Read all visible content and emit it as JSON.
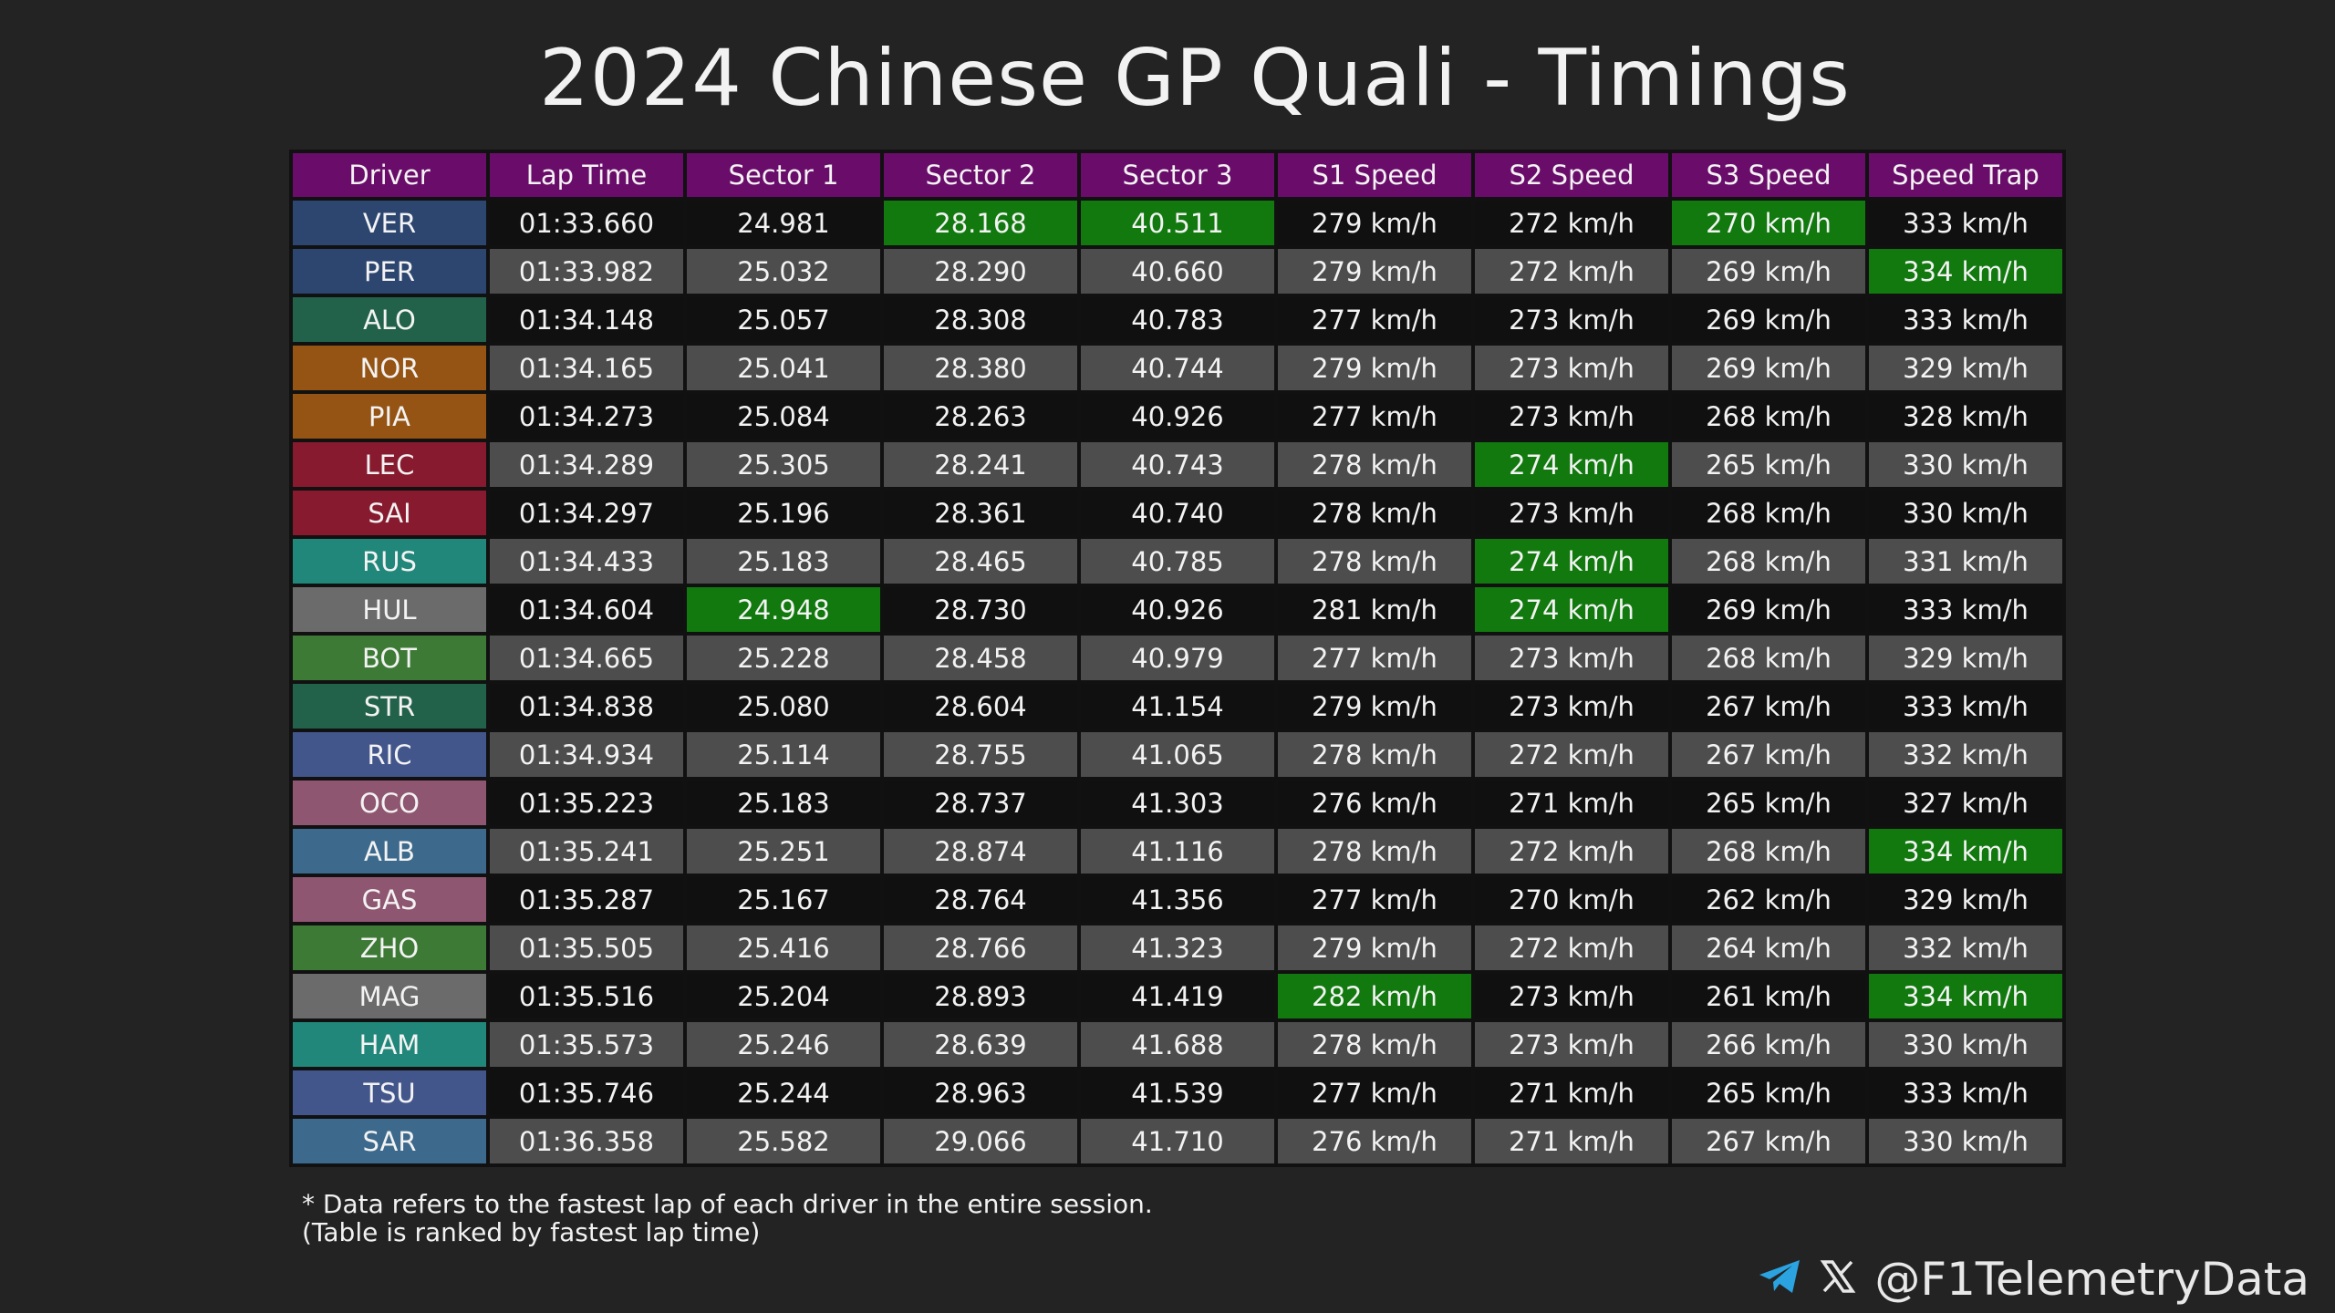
{
  "title": "2024 Chinese GP Quali - Timings",
  "watermark": "@F1TelemetryData",
  "colors": {
    "header": "#6a0c6a",
    "best": "#11790e",
    "row_dark": "#101010",
    "row_light": "#4d4d4d",
    "teams": {
      "VER": "#2c4670",
      "PER": "#2c4670",
      "ALO": "#22624a",
      "STR": "#22624a",
      "NOR": "#955414",
      "PIA": "#955414",
      "LEC": "#871a2e",
      "SAI": "#871a2e",
      "RUS": "#21877a",
      "HAM": "#21877a",
      "HUL": "#6b6b6b",
      "MAG": "#6b6b6b",
      "BOT": "#3d7a36",
      "ZHO": "#3d7a36",
      "RIC": "#43568c",
      "TSU": "#43568c",
      "OCO": "#8e5670",
      "GAS": "#8e5670",
      "ALB": "#3d6a8c",
      "SAR": "#3d6a8c"
    }
  },
  "chart_data": {
    "type": "table",
    "title": "2024 Chinese GP Quali - Timings",
    "columns": [
      "Driver",
      "Lap Time",
      "Sector 1",
      "Sector 2",
      "Sector 3",
      "S1 Speed",
      "S2 Speed",
      "S3 Speed",
      "Speed Trap"
    ],
    "rows": [
      [
        "VER",
        "01:33.660",
        "24.981",
        "28.168",
        "40.511",
        "279 km/h",
        "272 km/h",
        "270 km/h",
        "333 km/h"
      ],
      [
        "PER",
        "01:33.982",
        "25.032",
        "28.290",
        "40.660",
        "279 km/h",
        "272 km/h",
        "269 km/h",
        "334 km/h"
      ],
      [
        "ALO",
        "01:34.148",
        "25.057",
        "28.308",
        "40.783",
        "277 km/h",
        "273 km/h",
        "269 km/h",
        "333 km/h"
      ],
      [
        "NOR",
        "01:34.165",
        "25.041",
        "28.380",
        "40.744",
        "279 km/h",
        "273 km/h",
        "269 km/h",
        "329 km/h"
      ],
      [
        "PIA",
        "01:34.273",
        "25.084",
        "28.263",
        "40.926",
        "277 km/h",
        "273 km/h",
        "268 km/h",
        "328 km/h"
      ],
      [
        "LEC",
        "01:34.289",
        "25.305",
        "28.241",
        "40.743",
        "278 km/h",
        "274 km/h",
        "265 km/h",
        "330 km/h"
      ],
      [
        "SAI",
        "01:34.297",
        "25.196",
        "28.361",
        "40.740",
        "278 km/h",
        "273 km/h",
        "268 km/h",
        "330 km/h"
      ],
      [
        "RUS",
        "01:34.433",
        "25.183",
        "28.465",
        "40.785",
        "278 km/h",
        "274 km/h",
        "268 km/h",
        "331 km/h"
      ],
      [
        "HUL",
        "01:34.604",
        "24.948",
        "28.730",
        "40.926",
        "281 km/h",
        "274 km/h",
        "269 km/h",
        "333 km/h"
      ],
      [
        "BOT",
        "01:34.665",
        "25.228",
        "28.458",
        "40.979",
        "277 km/h",
        "273 km/h",
        "268 km/h",
        "329 km/h"
      ],
      [
        "STR",
        "01:34.838",
        "25.080",
        "28.604",
        "41.154",
        "279 km/h",
        "273 km/h",
        "267 km/h",
        "333 km/h"
      ],
      [
        "RIC",
        "01:34.934",
        "25.114",
        "28.755",
        "41.065",
        "278 km/h",
        "272 km/h",
        "267 km/h",
        "332 km/h"
      ],
      [
        "OCO",
        "01:35.223",
        "25.183",
        "28.737",
        "41.303",
        "276 km/h",
        "271 km/h",
        "265 km/h",
        "327 km/h"
      ],
      [
        "ALB",
        "01:35.241",
        "25.251",
        "28.874",
        "41.116",
        "278 km/h",
        "272 km/h",
        "268 km/h",
        "334 km/h"
      ],
      [
        "GAS",
        "01:35.287",
        "25.167",
        "28.764",
        "41.356",
        "277 km/h",
        "270 km/h",
        "262 km/h",
        "329 km/h"
      ],
      [
        "ZHO",
        "01:35.505",
        "25.416",
        "28.766",
        "41.323",
        "279 km/h",
        "272 km/h",
        "264 km/h",
        "332 km/h"
      ],
      [
        "MAG",
        "01:35.516",
        "25.204",
        "28.893",
        "41.419",
        "282 km/h",
        "273 km/h",
        "261 km/h",
        "334 km/h"
      ],
      [
        "HAM",
        "01:35.573",
        "25.246",
        "28.639",
        "41.688",
        "278 km/h",
        "273 km/h",
        "266 km/h",
        "330 km/h"
      ],
      [
        "TSU",
        "01:35.746",
        "25.244",
        "28.963",
        "41.539",
        "277 km/h",
        "271 km/h",
        "265 km/h",
        "333 km/h"
      ],
      [
        "SAR",
        "01:36.358",
        "25.582",
        "29.066",
        "41.710",
        "276 km/h",
        "271 km/h",
        "267 km/h",
        "330 km/h"
      ]
    ],
    "highlighted_best": [
      [
        0,
        3
      ],
      [
        0,
        4
      ],
      [
        0,
        7
      ],
      [
        1,
        8
      ],
      [
        5,
        6
      ],
      [
        7,
        6
      ],
      [
        8,
        2
      ],
      [
        8,
        6
      ],
      [
        13,
        8
      ],
      [
        16,
        5
      ],
      [
        16,
        8
      ]
    ]
  },
  "footnote": {
    "line1": "* Data refers to the fastest lap of each driver in the entire session.",
    "line2": "(Table is ranked by fastest lap time)"
  },
  "social": {
    "icons": [
      "telegram-icon",
      "x-icon"
    ],
    "handle": "@F1TelemetryData"
  }
}
